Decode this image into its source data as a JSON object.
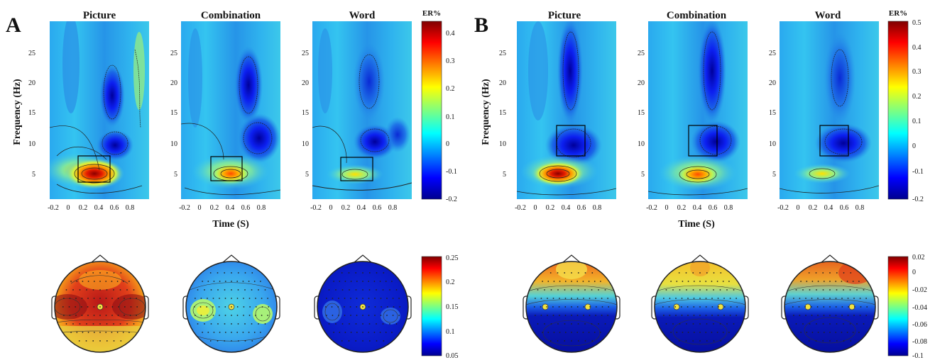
{
  "figure": {
    "panels": [
      {
        "letter": "A",
        "conditions": [
          "Picture",
          "Combination",
          "Word"
        ],
        "y_label": "Frequency (Hz)",
        "x_label": "Time (S)",
        "x_ticks": [
          "-0.2",
          "0",
          "0.2",
          "0.4",
          "0.6",
          "0.8"
        ],
        "y_ticks": [
          "5",
          "10",
          "15",
          "20",
          "25"
        ],
        "tf_colorbar": {
          "title": "ER%",
          "ticks": [
            "0.4",
            "0.3",
            "0.2",
            "0.1",
            "0",
            "-0.1",
            "-0.2"
          ]
        },
        "topo_colorbar": {
          "ticks": [
            "0.25",
            "0.2",
            "0.15",
            "0.1",
            "0.05"
          ]
        }
      },
      {
        "letter": "B",
        "conditions": [
          "Picture",
          "Combination",
          "Word"
        ],
        "y_label": "Frequency (Hz)",
        "x_label": "Time (S)",
        "x_ticks": [
          "-0.2",
          "0",
          "0.2",
          "0.4",
          "0.6",
          "0.8"
        ],
        "y_ticks": [
          "5",
          "10",
          "15",
          "20",
          "25"
        ],
        "tf_colorbar": {
          "title": "ER%",
          "ticks": [
            "0.5",
            "0.4",
            "0.3",
            "0.2",
            "0.1",
            "0",
            "-0.1",
            "-0.2"
          ]
        },
        "topo_colorbar": {
          "ticks": [
            "0.02",
            "0",
            "-0.02",
            "-0.04",
            "-0.06",
            "-0.08",
            "-0.1"
          ]
        }
      }
    ],
    "colors": {
      "jet_low": "#00008f",
      "jet_mid": "#7fff7f",
      "jet_high": "#7f0000",
      "background": "#ffffff"
    }
  },
  "chart_data": [
    {
      "type": "heatmap",
      "panel": "A",
      "title": "Picture",
      "xlabel": "Time (S)",
      "ylabel": "Frequency (Hz)",
      "xlim": [
        -0.3,
        1.0
      ],
      "ylim": [
        1,
        30
      ],
      "clim": [
        -0.2,
        0.45
      ],
      "roi": {
        "time": [
          0.15,
          0.45
        ],
        "freq": [
          4,
          8
        ]
      }
    },
    {
      "type": "heatmap",
      "panel": "A",
      "title": "Combination",
      "xlabel": "Time (S)",
      "ylabel": "Frequency (Hz)",
      "xlim": [
        -0.3,
        1.0
      ],
      "ylim": [
        1,
        30
      ],
      "clim": [
        -0.2,
        0.45
      ],
      "roi": {
        "time": [
          0.15,
          0.5
        ],
        "freq": [
          4,
          8
        ]
      }
    },
    {
      "type": "heatmap",
      "panel": "A",
      "title": "Word",
      "xlabel": "Time (S)",
      "ylabel": "Frequency (Hz)",
      "xlim": [
        -0.3,
        1.0
      ],
      "ylim": [
        1,
        30
      ],
      "clim": [
        -0.2,
        0.45
      ],
      "roi": {
        "time": [
          0.15,
          0.45
        ],
        "freq": [
          4,
          8
        ]
      }
    },
    {
      "type": "heatmap",
      "panel": "B",
      "title": "Picture",
      "xlabel": "Time (S)",
      "ylabel": "Frequency (Hz)",
      "xlim": [
        -0.3,
        1.0
      ],
      "ylim": [
        1,
        30
      ],
      "clim": [
        -0.2,
        0.5
      ],
      "roi": {
        "time": [
          0.3,
          0.6
        ],
        "freq": [
          8,
          13
        ]
      }
    },
    {
      "type": "heatmap",
      "panel": "B",
      "title": "Combination",
      "xlabel": "Time (S)",
      "ylabel": "Frequency (Hz)",
      "xlim": [
        -0.3,
        1.0
      ],
      "ylim": [
        1,
        30
      ],
      "clim": [
        -0.2,
        0.5
      ],
      "roi": {
        "time": [
          0.3,
          0.6
        ],
        "freq": [
          8,
          13
        ]
      }
    },
    {
      "type": "heatmap",
      "panel": "B",
      "title": "Word",
      "xlabel": "Time (S)",
      "ylabel": "Frequency (Hz)",
      "xlim": [
        -0.3,
        1.0
      ],
      "ylim": [
        1,
        30
      ],
      "clim": [
        -0.2,
        0.5
      ],
      "roi": {
        "time": [
          0.3,
          0.6
        ],
        "freq": [
          8,
          13
        ]
      }
    }
  ]
}
